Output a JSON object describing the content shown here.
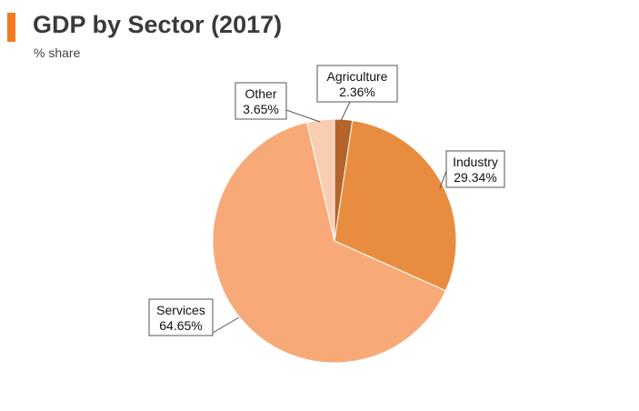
{
  "header": {
    "title": "GDP by Sector (2017)",
    "subtitle": "% share",
    "accent_color": "#f47b20"
  },
  "chart_data": {
    "type": "pie",
    "title": "GDP by Sector (2017)",
    "subtitle": "% share",
    "slices": [
      {
        "name": "Agriculture",
        "value": 2.36,
        "label": "2.36%",
        "color": "#b5642c"
      },
      {
        "name": "Industry",
        "value": 29.34,
        "label": "29.34%",
        "color": "#e88d40"
      },
      {
        "name": "Services",
        "value": 64.65,
        "label": "64.65%",
        "color": "#f7aa77"
      },
      {
        "name": "Other",
        "value": 3.65,
        "label": "3.65%",
        "color": "#f9cdb2"
      }
    ]
  }
}
